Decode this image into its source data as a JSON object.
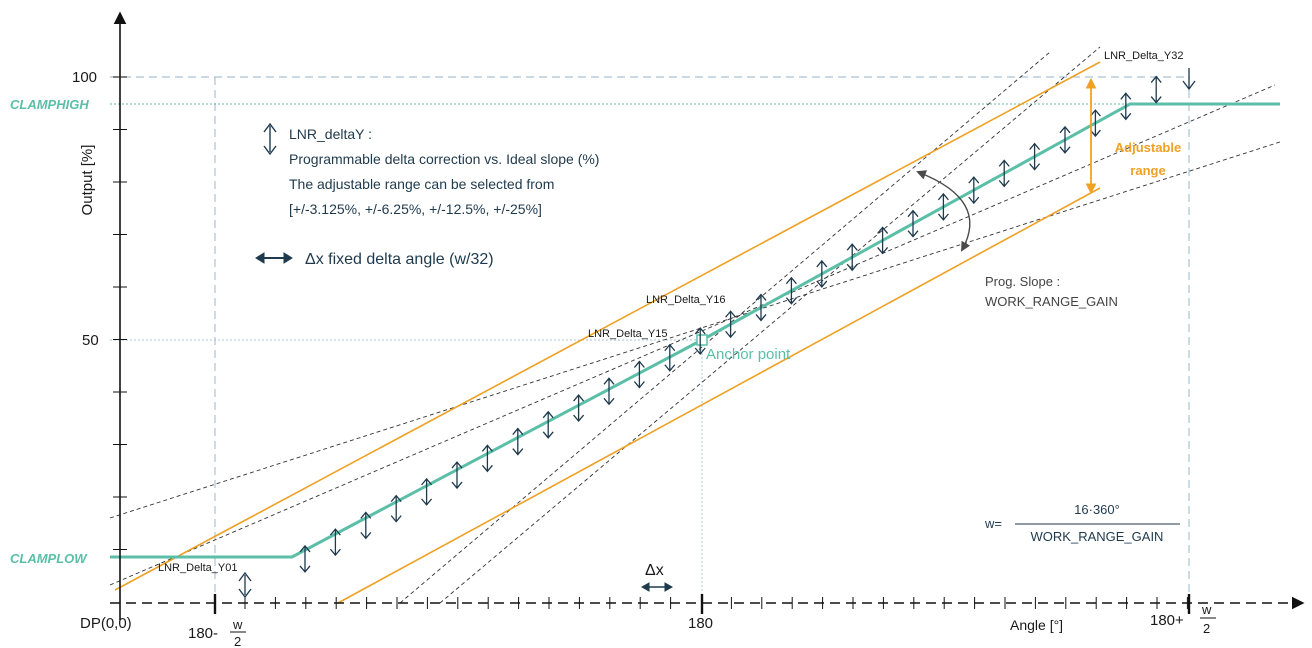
{
  "colors": {
    "teal": "#5bbfa8",
    "orange": "#f0a023",
    "dark_arrow": "#1f3a4d",
    "guide_dash": "#a9c4d6",
    "axis": "#111111"
  },
  "axes": {
    "y_label": "Output [%]",
    "x_label": "Angle [°]",
    "origin_label": "DP(0,0)",
    "y_tick_100": "100",
    "y_tick_50": "50",
    "x_tick_center": "180",
    "x_tick_left_prefix": "180-",
    "x_tick_right_prefix": "180+",
    "frac_num": "w",
    "frac_den": "2"
  },
  "clamp": {
    "high": "CLAMPHIGH",
    "low": "CLAMPLOW"
  },
  "legend": {
    "deltaY_title": "LNR_deltaY :",
    "deltaY_line1": "Programmable delta correction vs. Ideal slope (%)",
    "deltaY_line2": "The adjustable range can be selected from",
    "deltaY_line3": "[+/-3.125%, +/-6.25%, +/-12.5%, +/-25%]",
    "deltaX": "Δx fixed delta angle (w/32)"
  },
  "labels": {
    "y32": "LNR_Delta_Y32",
    "y16": "LNR_Delta_Y16",
    "y15": "LNR_Delta_Y15",
    "y01": "LNR_Delta_Y01",
    "anchor": "Anchor point",
    "adjustable_1": "Adjustable",
    "adjustable_2": "range",
    "prog_slope_1": "Prog. Slope :",
    "prog_slope_2": "WORK_RANGE_GAIN",
    "delta_x": "Δx"
  },
  "formula": {
    "lhs": "w=",
    "numerator": "16·360°",
    "denominator": "WORK_RANGE_GAIN"
  }
}
